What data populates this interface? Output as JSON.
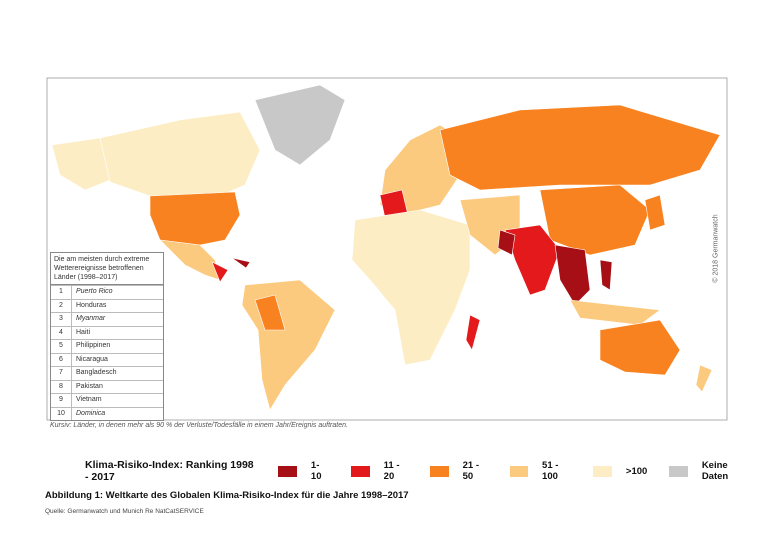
{
  "map": {
    "copyright": "© 2018 Germanwatch",
    "table": {
      "header": "Die am meisten durch extreme Wetterereignisse betroffenen Länder (1998–2017)",
      "rows": [
        {
          "rank": 1,
          "country": "Puerto Rico",
          "italic": true
        },
        {
          "rank": 2,
          "country": "Honduras",
          "italic": false
        },
        {
          "rank": 3,
          "country": "Myanmar",
          "italic": true
        },
        {
          "rank": 4,
          "country": "Haiti",
          "italic": false
        },
        {
          "rank": 5,
          "country": "Philippinen",
          "italic": false
        },
        {
          "rank": 6,
          "country": "Nicaragua",
          "italic": false
        },
        {
          "rank": 7,
          "country": "Bangladesch",
          "italic": false
        },
        {
          "rank": 8,
          "country": "Pakistan",
          "italic": false
        },
        {
          "rank": 9,
          "country": "Vietnam",
          "italic": false
        },
        {
          "rank": 10,
          "country": "Dominica",
          "italic": true
        }
      ]
    },
    "note": "Kursiv: Länder, in denen mehr als 90 % der Verluste/Todesfälle in einem Jahr/Ereignis auftraten."
  },
  "legend": {
    "title": "Klima-Risiko-Index: Ranking 1998 - 2017",
    "items": [
      {
        "label": "1- 10",
        "color": "#a50f15"
      },
      {
        "label": "11 - 20",
        "color": "#e3191c"
      },
      {
        "label": "21 - 50",
        "color": "#f7821f"
      },
      {
        "label": "51 - 100",
        "color": "#fcca7e"
      },
      {
        "label": ">100",
        "color": "#fdedc4"
      },
      {
        "label": "Keine Daten",
        "color": "#c8c8c8"
      }
    ]
  },
  "caption": "Abbildung 1: Weltkarte des Globalen Klima-Risiko-Index für die Jahre 1998–2017",
  "source": "Quelle: Germanwatch und Munich Re NatCatSERVICE"
}
